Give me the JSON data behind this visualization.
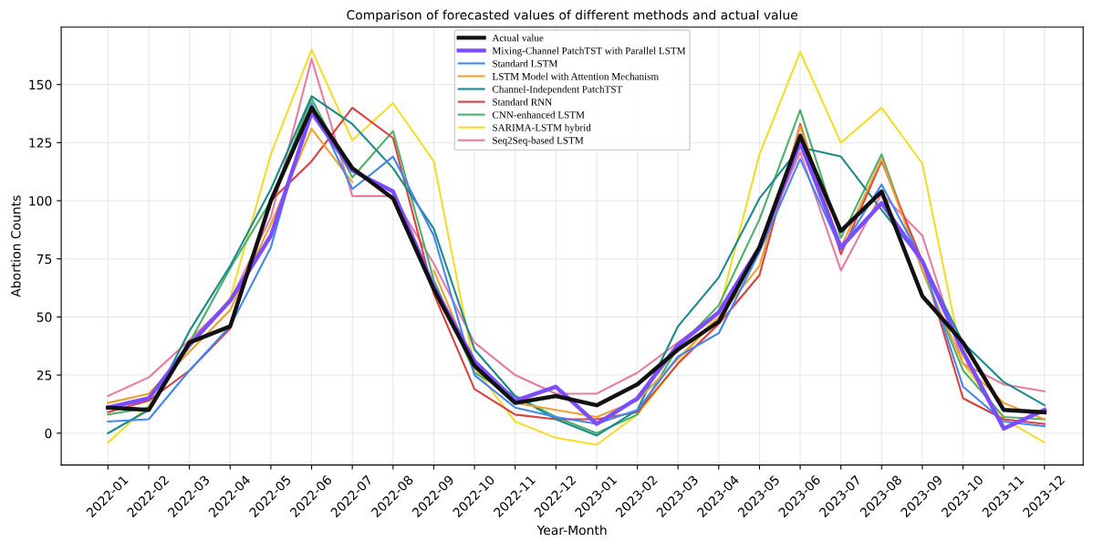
{
  "chart_data": {
    "type": "line",
    "title": "Comparison of forecasted values of different methods and actual value",
    "xlabel": "Year-Month",
    "ylabel": "Abortion Counts",
    "categories": [
      "2022-01",
      "2022-02",
      "2022-03",
      "2022-04",
      "2022-05",
      "2022-06",
      "2022-07",
      "2022-08",
      "2022-09",
      "2022-10",
      "2022-11",
      "2022-12",
      "2023-01",
      "2023-02",
      "2023-03",
      "2023-04",
      "2023-05",
      "2023-06",
      "2023-07",
      "2023-08",
      "2023-09",
      "2023-10",
      "2023-11",
      "2023-12"
    ],
    "ylim": [
      -13.7,
      174.7
    ],
    "yticks": [
      0,
      25,
      50,
      75,
      100,
      125,
      150
    ],
    "grid": true,
    "legend": "top",
    "marker": "none",
    "line_style": "solid",
    "series": [
      {
        "name": "Actual value",
        "color": "#111111",
        "values": [
          11,
          10,
          39,
          46,
          100,
          140,
          114,
          101,
          62,
          29,
          13,
          16,
          12,
          21,
          36,
          48,
          80,
          128,
          87,
          104,
          59,
          39,
          10,
          9
        ]
      },
      {
        "name": "Mixing-Channel PatchTST with Parallel LSTM",
        "color": "#7b4dff",
        "values": [
          11,
          15,
          38,
          57,
          85,
          138,
          113,
          104,
          63,
          31,
          14,
          20,
          4,
          15,
          38,
          52,
          80,
          125,
          80,
          99,
          74,
          35,
          2,
          10
        ]
      },
      {
        "name": "Standard LSTM",
        "color": "#4285f4",
        "values": [
          5,
          6,
          27,
          46,
          80,
          142,
          105,
          119,
          85,
          25,
          11,
          7,
          4,
          10,
          33,
          43,
          78,
          118,
          79,
          107,
          74,
          20,
          5,
          3
        ]
      },
      {
        "name": "LSTM Model with Attention Mechanism",
        "color": "#f0a030",
        "values": [
          13,
          17,
          35,
          53,
          90,
          131,
          108,
          null,
          70,
          28,
          13,
          10,
          7,
          14,
          32,
          50,
          72,
          132,
          80,
          118,
          70,
          30,
          13,
          6
        ]
      },
      {
        "name": "Channel-Independent PatchTST",
        "color": "#1a8a8a",
        "values": [
          0,
          10,
          44,
          72,
          105,
          145,
          133,
          114,
          88,
          36,
          16,
          6,
          -1,
          10,
          46,
          67,
          101,
          123,
          119,
          96,
          74,
          39,
          22,
          12
        ]
      },
      {
        "name": "Standard RNN",
        "color": "#d94040",
        "values": [
          9,
          14,
          27,
          45,
          100,
          117,
          140,
          127,
          60,
          19,
          8,
          6,
          6,
          9,
          30,
          47,
          68,
          133,
          77,
          117,
          74,
          15,
          6,
          4
        ]
      },
      {
        "name": "CNN-enhanced LSTM",
        "color": "#4caf6a",
        "values": [
          8,
          11,
          39,
          71,
          100,
          144,
          110,
          130,
          66,
          26,
          16,
          7,
          0,
          8,
          37,
          55,
          92,
          139,
          84,
          120,
          70,
          27,
          7,
          6
        ]
      },
      {
        "name": "SARIMA-LSTM hybrid",
        "color": "#f5dc2a",
        "values": [
          -4,
          12,
          37,
          58,
          120,
          165,
          126,
          142,
          117,
          28,
          5,
          -2,
          -5,
          8,
          30,
          52,
          120,
          164,
          125,
          140,
          116,
          30,
          6,
          -4
        ]
      },
      {
        "name": "Seq2Seq-based LSTM",
        "color": "#e87ba0",
        "values": [
          16,
          24,
          40,
          57,
          93,
          161,
          102,
          102,
          73,
          39,
          25,
          17,
          17,
          26,
          39,
          52,
          80,
          121,
          70,
          103,
          85,
          30,
          21,
          18
        ]
      }
    ]
  }
}
